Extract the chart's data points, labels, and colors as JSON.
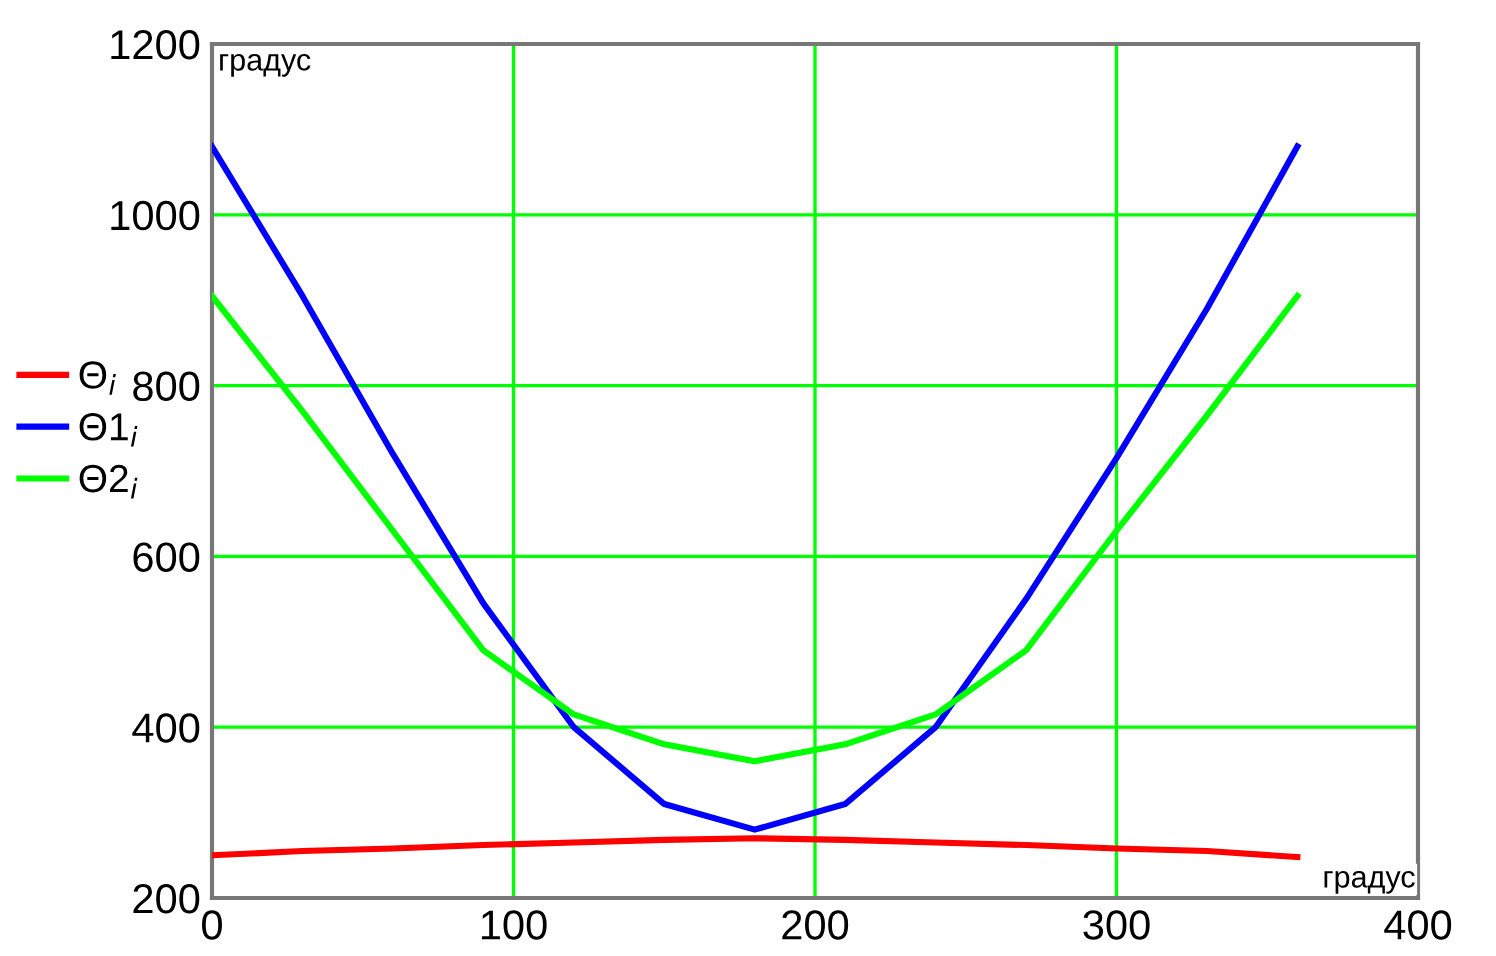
{
  "chart_data": {
    "type": "line",
    "xlabel": "градус",
    "ylabel": "градус",
    "x": [
      0,
      30,
      60,
      90,
      120,
      150,
      180,
      210,
      240,
      270,
      300,
      330,
      360
    ],
    "series": [
      {
        "name": "Θ$_{i}$",
        "color": "#ff0000",
        "values": [
          250,
          255,
          258,
          262,
          265,
          268,
          270,
          268,
          265,
          262,
          258,
          255,
          248
        ]
      },
      {
        "name": "Θ1$_{i}$",
        "color": "#0000ff",
        "values": [
          1080,
          905,
          720,
          545,
          400,
          310,
          280,
          310,
          400,
          550,
          715,
          890,
          1080
        ]
      },
      {
        "name": "Θ2$_{i}$",
        "color": "#00ff00",
        "values": [
          905,
          770,
          630,
          490,
          415,
          380,
          360,
          380,
          415,
          490,
          630,
          765,
          905
        ]
      }
    ],
    "xlim": [
      0,
      400
    ],
    "ylim": [
      200,
      1200
    ],
    "xticks": [
      0,
      100,
      200,
      300,
      400
    ],
    "yticks": [
      200,
      400,
      600,
      800,
      1000,
      1200
    ],
    "grid": true,
    "legend": "left",
    "marker": "none",
    "line_style": "solid"
  }
}
